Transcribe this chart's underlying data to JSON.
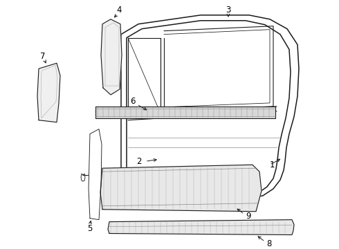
{
  "background_color": "#ffffff",
  "line_color": "#1a1a1a",
  "lw_main": 1.3,
  "lw_thin": 0.8,
  "lw_detail": 0.5,
  "label_fontsize": 8.5,
  "arrow_color": "#1a1a1a"
}
